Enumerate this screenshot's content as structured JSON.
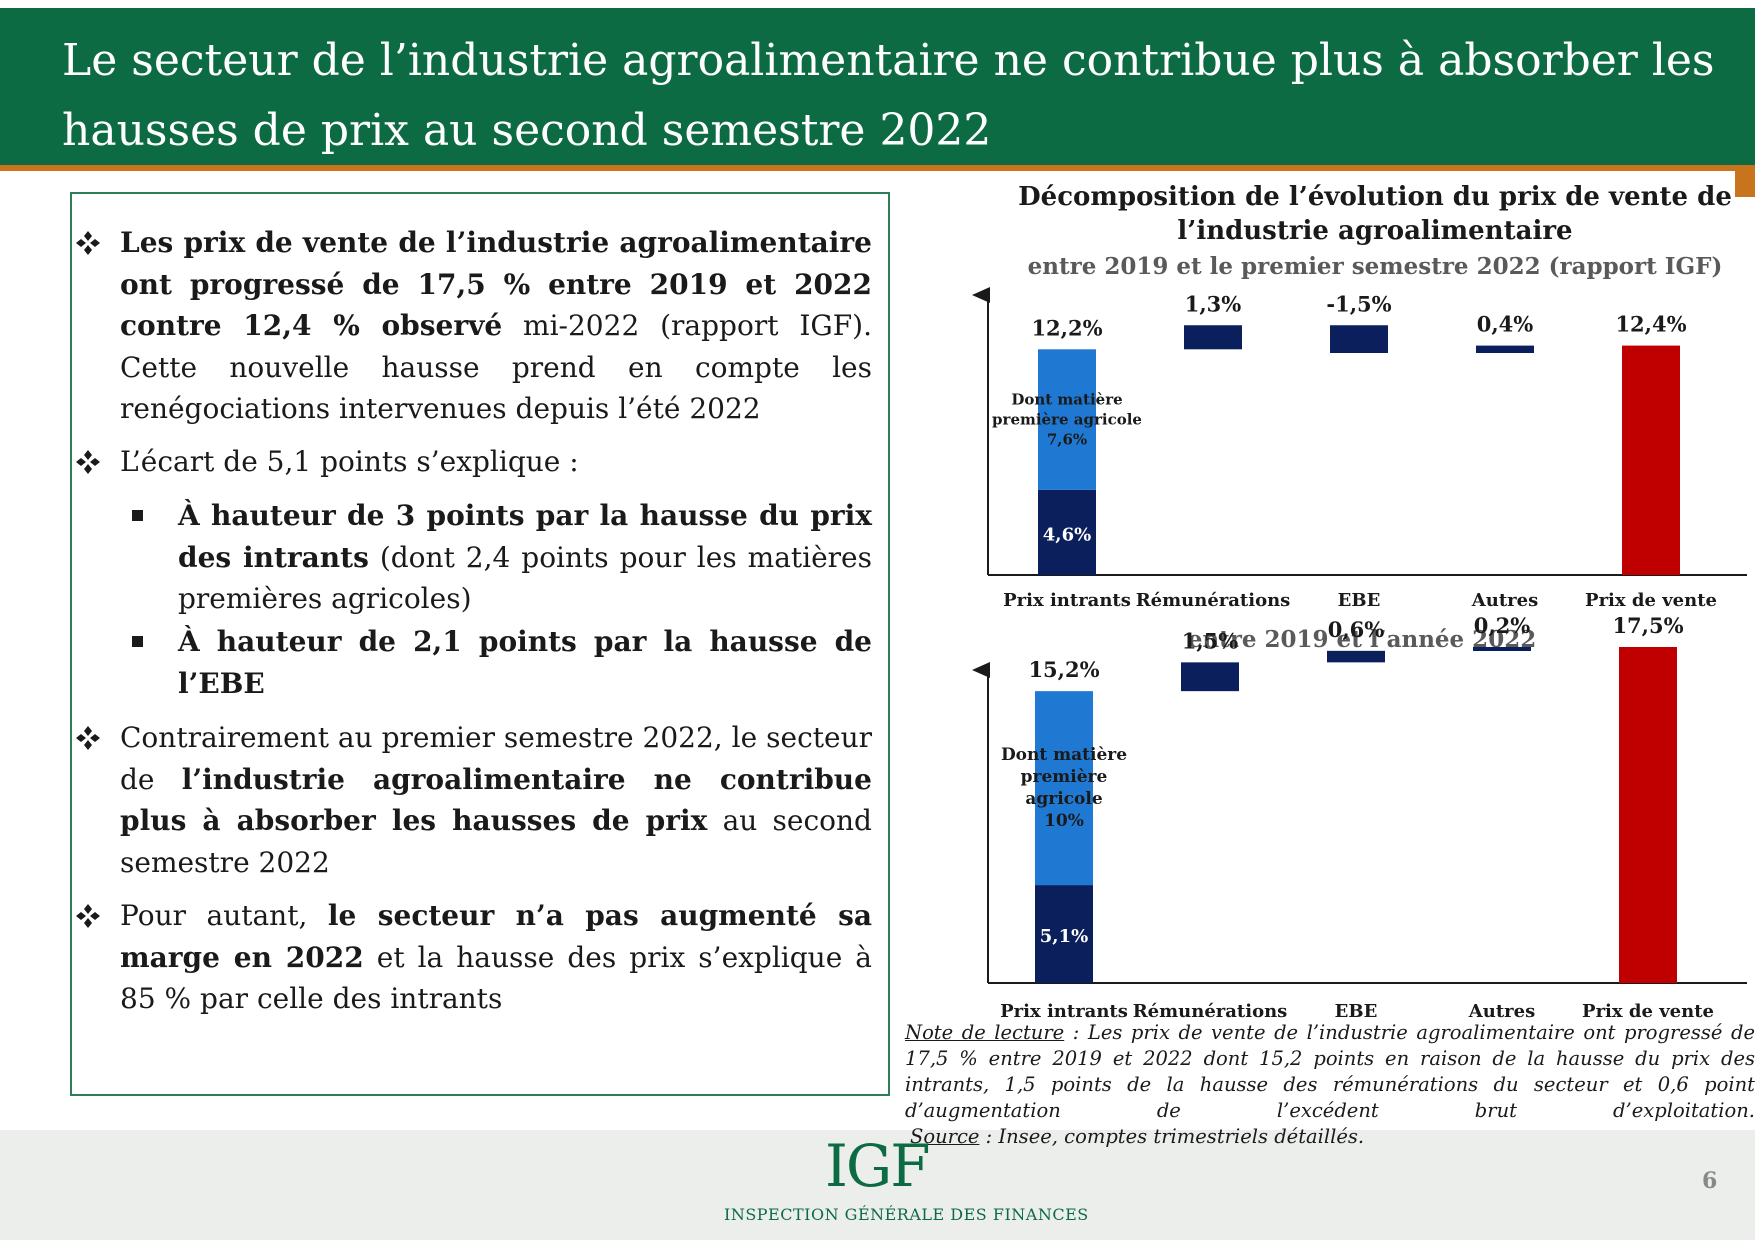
{
  "header": {
    "title_line1": "Le secteur de l’industrie agroalimentaire ne contribue plus à absorber les",
    "title_line2": "hausses de prix au second semestre 2022"
  },
  "bullets": {
    "b1_bold": "Les prix de vente de l’industrie agroalimentaire ont progressé de 17,5 % entre 2019 et 2022 contre 12,4 % observé",
    "b1_rest": " mi-2022 (rapport IGF). Cette nouvelle hausse prend en compte les renégociations intervenues depuis l’été 2022",
    "b2": "L’écart de 5,1 points s’explique :",
    "s1_bold": "À hauteur de 3 points par la hausse du prix des intrants",
    "s1_rest": " (dont 2,4 points pour les matières premières agricoles)",
    "s2_bold": "À hauteur de 2,1 points par la hausse de l’EBE",
    "b3_a": "Contrairement au premier semestre 2022, le secteur de ",
    "b3_bold": "l’industrie agroalimentaire ne contribue plus à absorber les hausses de prix",
    "b3_c": " au second semestre 2022",
    "b4_a": "Pour autant, ",
    "b4_bold": "le secteur n’a pas augmenté sa marge en 2022",
    "b4_c": " et la hausse des prix s’explique à 85 % par celle des intrants"
  },
  "chart_data": {
    "type": "bar",
    "title": "Décomposition de l’évolution du prix de vente de l’industrie agroalimentaire",
    "categories": [
      "Prix intrants",
      "Rémunérations",
      "EBE",
      "Autres",
      "Prix de vente"
    ],
    "colors": {
      "dark": "#0b1f5c",
      "light": "#1f78d1",
      "total": "#c00000"
    },
    "panels": [
      {
        "subtitle": "entre 2019 et le premier semestre 2022 (rapport IGF)",
        "labels": [
          "12,2%",
          "1,3%",
          "-1,5%",
          "0,4%",
          "12,4%"
        ],
        "values": [
          12.2,
          1.3,
          -1.5,
          0.4,
          12.4
        ],
        "intrants_split": {
          "base": 4.6,
          "base_label": "4,6%",
          "agricole": 7.6,
          "agricole_label": "Dont matière première agricole 7,6%"
        }
      },
      {
        "subtitle": "entre 2019 et l’année 2022",
        "labels": [
          "15,2%",
          "1,5%",
          "0,6%",
          "0,2%",
          "17,5%"
        ],
        "values": [
          15.2,
          1.5,
          0.6,
          0.2,
          17.5
        ],
        "intrants_split": {
          "base": 5.1,
          "base_label": "5,1%",
          "agricole": 10,
          "agricole_label": "Dont matière première agricole 10%"
        }
      }
    ]
  },
  "note": {
    "label": "Note de lecture",
    "text": " : Les prix de vente de l’industrie agroalimentaire ont progressé de 17,5 % entre 2019 et 2022 dont 15,2 points en raison de la hausse du prix des intrants, 1,5 points de la hausse des rémunérations du secteur et 0,6 point d’augmentation de l’excédent brut d’exploitation."
  },
  "source": {
    "label": "Source",
    "text": " : Insee, comptes trimestriels détaillés."
  },
  "footer": {
    "logo": "IGF",
    "logo_sub": "INSPECTION GÉNÉRALE DES FINANCES",
    "page": "6"
  }
}
